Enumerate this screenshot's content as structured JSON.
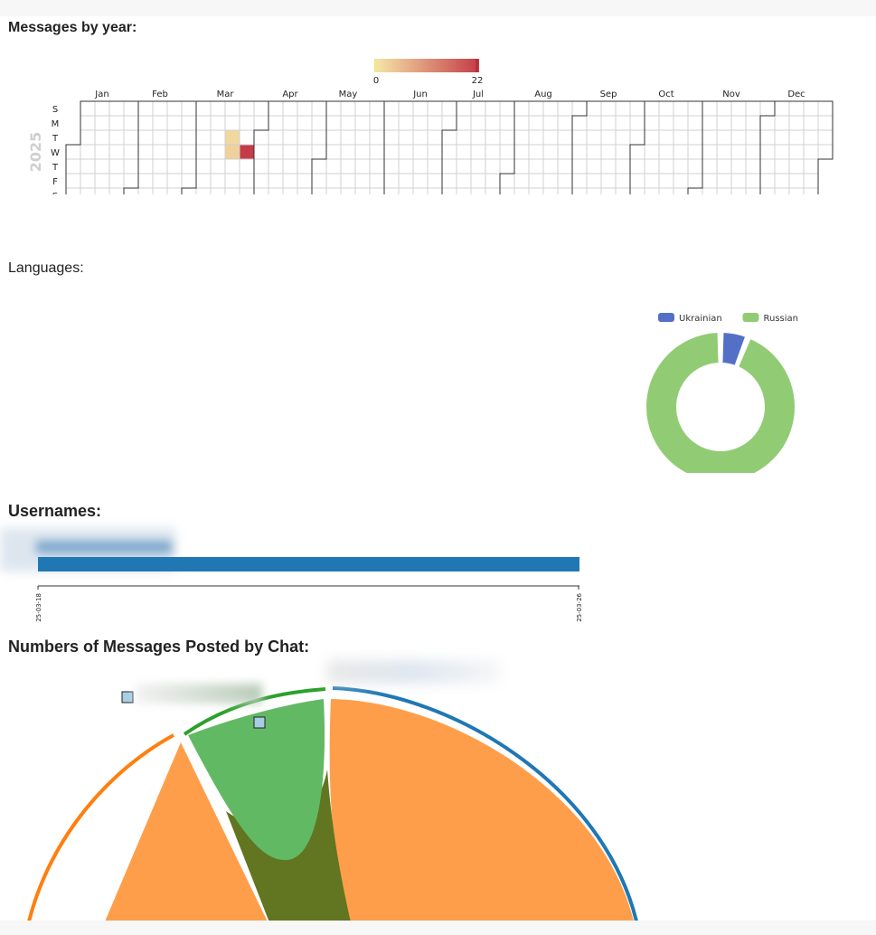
{
  "sections": {
    "year_title": "Messages by year:",
    "languages_title": "Languages:",
    "usernames_title": "Usernames:",
    "chat_title": "Numbers of Messages Posted by Chat:"
  },
  "chart_data": [
    {
      "type": "heatmap",
      "year": "2025",
      "months": [
        "Jan",
        "Feb",
        "Mar",
        "Apr",
        "May",
        "Jun",
        "Jul",
        "Aug",
        "Sep",
        "Oct",
        "Nov",
        "Dec"
      ],
      "weekdays": [
        "S",
        "M",
        "T",
        "W",
        "T",
        "F",
        "S"
      ],
      "scale": {
        "min": 0,
        "max": 22,
        "min_label": "0",
        "max_label": "22"
      },
      "colors": {
        "low": "#f6e8a8",
        "high": "#c43c47",
        "empty": "#ffffff",
        "grid": "#d0d0d0",
        "border": "#333333"
      },
      "cells": [
        {
          "date": "2025-03-18",
          "value": 2
        },
        {
          "date": "2025-03-19",
          "value": 3
        },
        {
          "date": "2025-03-26",
          "value": 22
        }
      ]
    },
    {
      "type": "pie",
      "legend_position": "top",
      "labels": [
        "Ukrainian",
        "Russian"
      ],
      "values": [
        6,
        94
      ],
      "colors": [
        "#5470c6",
        "#91cc75"
      ]
    },
    {
      "type": "bar",
      "orientation": "horizontal",
      "x_tick_labels": [
        "2025-03-18",
        "2025-03-26"
      ],
      "bars": [
        {
          "start": "2025-03-18",
          "end": "2025-03-26"
        }
      ],
      "color": "#1f77b4"
    },
    {
      "type": "other",
      "series_colors": [
        "#1f77b4",
        "#ff7f0e",
        "#2ca02c"
      ],
      "fill_colors": [
        "#ff9e4a",
        "#62b963",
        "#627520"
      ]
    }
  ]
}
